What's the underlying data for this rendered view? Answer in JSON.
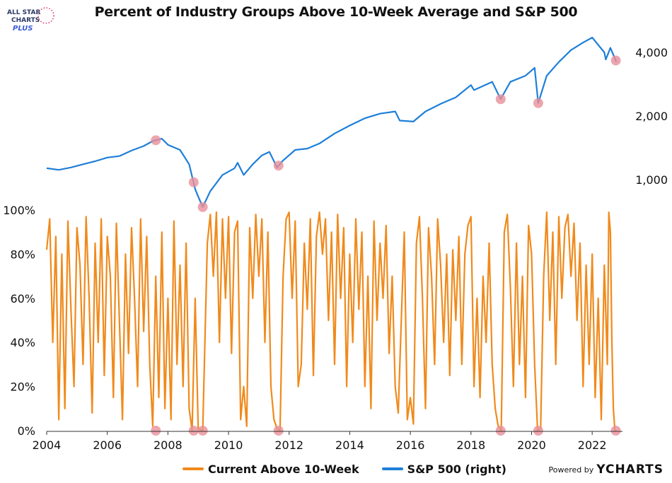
{
  "title": "Percent of Industry Groups Above 10-Week Average and S&P 500",
  "logo": {
    "line1": "ALL STAR",
    "line2": "CHARTS",
    "line3": "PLUS"
  },
  "legend": {
    "series1": "Current Above 10-Week",
    "series2": "S&P 500 (right)"
  },
  "powered_by": {
    "label": "Powered by",
    "brand": "YCHARTS"
  },
  "colors": {
    "pct": "#F08A1C",
    "spx": "#1E7FD8",
    "marker": "#E8909A",
    "axis": "#555555"
  },
  "chart_data": [
    {
      "type": "line",
      "name": "S&P 500 (right)",
      "yscale": "log",
      "ylim": [
        700,
        5200
      ],
      "xlim": [
        2004.0,
        2023.0
      ],
      "right_ticks": [
        1000,
        2000,
        4000
      ],
      "right_tick_labels": [
        "1,000",
        "2,000",
        "4,000"
      ],
      "points": [
        [
          2004.0,
          1130
        ],
        [
          2004.4,
          1110
        ],
        [
          2004.8,
          1140
        ],
        [
          2005.2,
          1180
        ],
        [
          2005.6,
          1220
        ],
        [
          2006.0,
          1270
        ],
        [
          2006.4,
          1290
        ],
        [
          2006.8,
          1370
        ],
        [
          2007.2,
          1440
        ],
        [
          2007.5,
          1520
        ],
        [
          2007.8,
          1560
        ],
        [
          2008.0,
          1460
        ],
        [
          2008.4,
          1380
        ],
        [
          2008.7,
          1180
        ],
        [
          2008.9,
          900
        ],
        [
          2009.0,
          830
        ],
        [
          2009.15,
          740
        ],
        [
          2009.4,
          880
        ],
        [
          2009.8,
          1050
        ],
        [
          2010.2,
          1130
        ],
        [
          2010.3,
          1200
        ],
        [
          2010.5,
          1050
        ],
        [
          2010.8,
          1180
        ],
        [
          2011.1,
          1300
        ],
        [
          2011.35,
          1350
        ],
        [
          2011.6,
          1140
        ],
        [
          2011.8,
          1230
        ],
        [
          2012.2,
          1380
        ],
        [
          2012.6,
          1400
        ],
        [
          2013.0,
          1480
        ],
        [
          2013.5,
          1650
        ],
        [
          2014.0,
          1800
        ],
        [
          2014.5,
          1950
        ],
        [
          2015.0,
          2050
        ],
        [
          2015.5,
          2100
        ],
        [
          2015.65,
          1900
        ],
        [
          2016.1,
          1880
        ],
        [
          2016.5,
          2100
        ],
        [
          2017.0,
          2280
        ],
        [
          2017.5,
          2450
        ],
        [
          2018.0,
          2800
        ],
        [
          2018.1,
          2650
        ],
        [
          2018.7,
          2900
        ],
        [
          2018.98,
          2400
        ],
        [
          2019.3,
          2900
        ],
        [
          2019.8,
          3100
        ],
        [
          2020.1,
          3380
        ],
        [
          2020.22,
          2300
        ],
        [
          2020.5,
          3100
        ],
        [
          2020.9,
          3600
        ],
        [
          2021.3,
          4100
        ],
        [
          2021.7,
          4450
        ],
        [
          2022.0,
          4700
        ],
        [
          2022.4,
          4000
        ],
        [
          2022.45,
          3700
        ],
        [
          2022.6,
          4200
        ],
        [
          2022.8,
          3600
        ]
      ]
    },
    {
      "type": "line",
      "name": "Current Above 10-Week",
      "ylim": [
        0,
        100
      ],
      "xlim": [
        2004.0,
        2023.0
      ],
      "y_ticks": [
        0,
        20,
        40,
        60,
        80,
        100
      ],
      "y_tick_labels": [
        "0%",
        "20%",
        "40%",
        "60%",
        "80%",
        "100%"
      ],
      "x_ticks": [
        2004,
        2006,
        2008,
        2010,
        2012,
        2014,
        2016,
        2018,
        2020,
        2022
      ],
      "x_tick_labels": [
        "2004",
        "2006",
        "2008",
        "2010",
        "2012",
        "2014",
        "2016",
        "2018",
        "2020",
        "2022"
      ],
      "points": [
        [
          2004.0,
          82
        ],
        [
          2004.1,
          96
        ],
        [
          2004.2,
          40
        ],
        [
          2004.3,
          88
        ],
        [
          2004.4,
          5
        ],
        [
          2004.5,
          80
        ],
        [
          2004.6,
          10
        ],
        [
          2004.7,
          95
        ],
        [
          2004.8,
          55
        ],
        [
          2004.9,
          20
        ],
        [
          2005.0,
          92
        ],
        [
          2005.1,
          75
        ],
        [
          2005.2,
          30
        ],
        [
          2005.3,
          97
        ],
        [
          2005.4,
          60
        ],
        [
          2005.5,
          8
        ],
        [
          2005.6,
          85
        ],
        [
          2005.7,
          40
        ],
        [
          2005.8,
          96
        ],
        [
          2005.9,
          25
        ],
        [
          2006.0,
          88
        ],
        [
          2006.1,
          70
        ],
        [
          2006.2,
          15
        ],
        [
          2006.3,
          94
        ],
        [
          2006.4,
          50
        ],
        [
          2006.5,
          5
        ],
        [
          2006.6,
          80
        ],
        [
          2006.7,
          35
        ],
        [
          2006.8,
          92
        ],
        [
          2006.9,
          60
        ],
        [
          2007.0,
          20
        ],
        [
          2007.1,
          96
        ],
        [
          2007.2,
          45
        ],
        [
          2007.3,
          88
        ],
        [
          2007.4,
          30
        ],
        [
          2007.5,
          2
        ],
        [
          2007.6,
          70
        ],
        [
          2007.7,
          15
        ],
        [
          2007.8,
          90
        ],
        [
          2007.9,
          10
        ],
        [
          2008.0,
          60
        ],
        [
          2008.1,
          5
        ],
        [
          2008.2,
          95
        ],
        [
          2008.3,
          30
        ],
        [
          2008.4,
          75
        ],
        [
          2008.5,
          20
        ],
        [
          2008.6,
          85
        ],
        [
          2008.7,
          10
        ],
        [
          2008.8,
          0
        ],
        [
          2008.9,
          60
        ],
        [
          2009.0,
          1
        ],
        [
          2009.15,
          0
        ],
        [
          2009.3,
          85
        ],
        [
          2009.4,
          98
        ],
        [
          2009.5,
          70
        ],
        [
          2009.6,
          99
        ],
        [
          2009.7,
          40
        ],
        [
          2009.8,
          96
        ],
        [
          2009.9,
          60
        ],
        [
          2010.0,
          97
        ],
        [
          2010.1,
          35
        ],
        [
          2010.2,
          90
        ],
        [
          2010.3,
          95
        ],
        [
          2010.4,
          5
        ],
        [
          2010.5,
          20
        ],
        [
          2010.6,
          2
        ],
        [
          2010.7,
          92
        ],
        [
          2010.8,
          60
        ],
        [
          2010.9,
          98
        ],
        [
          2011.0,
          70
        ],
        [
          2011.1,
          96
        ],
        [
          2011.2,
          40
        ],
        [
          2011.3,
          90
        ],
        [
          2011.4,
          20
        ],
        [
          2011.5,
          5
        ],
        [
          2011.6,
          1
        ],
        [
          2011.7,
          0
        ],
        [
          2011.8,
          70
        ],
        [
          2011.9,
          96
        ],
        [
          2012.0,
          99
        ],
        [
          2012.1,
          60
        ],
        [
          2012.2,
          95
        ],
        [
          2012.3,
          20
        ],
        [
          2012.4,
          30
        ],
        [
          2012.5,
          85
        ],
        [
          2012.6,
          55
        ],
        [
          2012.7,
          96
        ],
        [
          2012.8,
          25
        ],
        [
          2012.9,
          88
        ],
        [
          2013.0,
          99
        ],
        [
          2013.1,
          80
        ],
        [
          2013.2,
          96
        ],
        [
          2013.3,
          50
        ],
        [
          2013.4,
          90
        ],
        [
          2013.5,
          30
        ],
        [
          2013.6,
          98
        ],
        [
          2013.7,
          60
        ],
        [
          2013.8,
          92
        ],
        [
          2013.9,
          20
        ],
        [
          2014.0,
          80
        ],
        [
          2014.1,
          40
        ],
        [
          2014.2,
          96
        ],
        [
          2014.3,
          55
        ],
        [
          2014.4,
          90
        ],
        [
          2014.5,
          20
        ],
        [
          2014.6,
          70
        ],
        [
          2014.7,
          10
        ],
        [
          2014.8,
          95
        ],
        [
          2014.9,
          50
        ],
        [
          2015.0,
          85
        ],
        [
          2015.1,
          60
        ],
        [
          2015.2,
          93
        ],
        [
          2015.3,
          35
        ],
        [
          2015.4,
          70
        ],
        [
          2015.5,
          20
        ],
        [
          2015.6,
          8
        ],
        [
          2015.7,
          50
        ],
        [
          2015.8,
          90
        ],
        [
          2015.9,
          5
        ],
        [
          2016.0,
          15
        ],
        [
          2016.1,
          3
        ],
        [
          2016.2,
          85
        ],
        [
          2016.3,
          97
        ],
        [
          2016.4,
          60
        ],
        [
          2016.5,
          10
        ],
        [
          2016.6,
          92
        ],
        [
          2016.7,
          70
        ],
        [
          2016.8,
          30
        ],
        [
          2016.9,
          96
        ],
        [
          2017.0,
          75
        ],
        [
          2017.1,
          40
        ],
        [
          2017.2,
          80
        ],
        [
          2017.3,
          25
        ],
        [
          2017.4,
          82
        ],
        [
          2017.5,
          50
        ],
        [
          2017.6,
          88
        ],
        [
          2017.7,
          30
        ],
        [
          2017.8,
          80
        ],
        [
          2017.9,
          93
        ],
        [
          2018.0,
          97
        ],
        [
          2018.1,
          20
        ],
        [
          2018.2,
          60
        ],
        [
          2018.3,
          15
        ],
        [
          2018.4,
          70
        ],
        [
          2018.5,
          40
        ],
        [
          2018.6,
          85
        ],
        [
          2018.7,
          30
        ],
        [
          2018.8,
          10
        ],
        [
          2018.9,
          2
        ],
        [
          2019.0,
          0
        ],
        [
          2019.1,
          90
        ],
        [
          2019.2,
          98
        ],
        [
          2019.3,
          65
        ],
        [
          2019.4,
          20
        ],
        [
          2019.5,
          85
        ],
        [
          2019.6,
          30
        ],
        [
          2019.7,
          70
        ],
        [
          2019.8,
          15
        ],
        [
          2019.9,
          93
        ],
        [
          2020.0,
          80
        ],
        [
          2020.1,
          30
        ],
        [
          2020.2,
          0
        ],
        [
          2020.3,
          1
        ],
        [
          2020.4,
          70
        ],
        [
          2020.5,
          99
        ],
        [
          2020.6,
          50
        ],
        [
          2020.7,
          90
        ],
        [
          2020.8,
          30
        ],
        [
          2020.9,
          97
        ],
        [
          2021.0,
          60
        ],
        [
          2021.1,
          92
        ],
        [
          2021.2,
          98
        ],
        [
          2021.3,
          70
        ],
        [
          2021.4,
          94
        ],
        [
          2021.5,
          50
        ],
        [
          2021.6,
          85
        ],
        [
          2021.7,
          20
        ],
        [
          2021.8,
          75
        ],
        [
          2021.9,
          30
        ],
        [
          2022.0,
          80
        ],
        [
          2022.1,
          15
        ],
        [
          2022.2,
          60
        ],
        [
          2022.3,
          5
        ],
        [
          2022.4,
          75
        ],
        [
          2022.5,
          30
        ],
        [
          2022.55,
          99
        ],
        [
          2022.6,
          90
        ],
        [
          2022.65,
          40
        ],
        [
          2022.7,
          10
        ],
        [
          2022.75,
          0
        ],
        [
          2022.8,
          0
        ]
      ]
    }
  ],
  "highlight_years": [
    2007.6,
    2008.85,
    2009.15,
    2011.65,
    2018.98,
    2020.22,
    2022.78
  ]
}
